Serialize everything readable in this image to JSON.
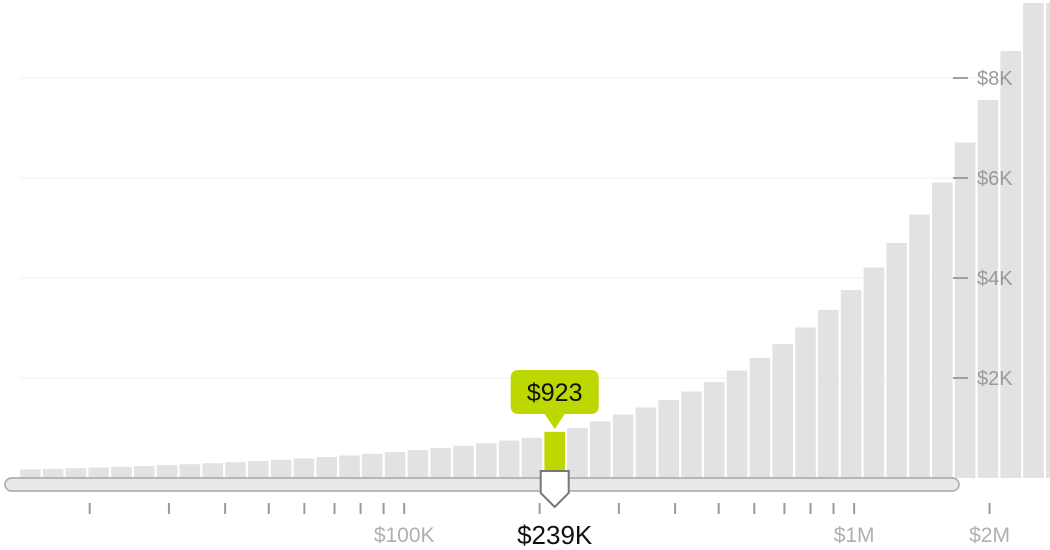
{
  "chart_data": {
    "type": "bar",
    "title": "",
    "xlabel": "",
    "ylabel": "",
    "x_scale": "log",
    "xlim": [
      14000,
      3000000
    ],
    "ylim": [
      0,
      9500
    ],
    "y_ticks": [
      {
        "value": 2000,
        "label": "$2K"
      },
      {
        "value": 4000,
        "label": "$4K"
      },
      {
        "value": 6000,
        "label": "$6K"
      },
      {
        "value": 8000,
        "label": "$8K"
      }
    ],
    "x_labeled_ticks": [
      {
        "value": 100000,
        "label": "$100K"
      },
      {
        "value": 1000000,
        "label": "$1M"
      },
      {
        "value": 2000000,
        "label": "$2M"
      }
    ],
    "x_minor_ticks": [
      20000,
      30000,
      40000,
      50000,
      60000,
      70000,
      80000,
      90000,
      200000,
      300000,
      400000,
      500000,
      600000,
      700000,
      800000,
      900000,
      3000000
    ],
    "values": [
      170,
      182,
      195,
      209,
      224,
      240,
      257,
      276,
      296,
      317,
      340,
      365,
      391,
      420,
      450,
      483,
      519,
      558,
      600,
      646,
      695,
      749,
      806,
      923,
      1000,
      1130,
      1270,
      1410,
      1560,
      1730,
      1920,
      2150,
      2400,
      2680,
      3010,
      3360,
      3760,
      4210,
      4700,
      5270,
      5910,
      6710,
      7560,
      8540,
      9500,
      9500
    ],
    "selected": {
      "index": 23,
      "value_label": "$923",
      "income_label": "$239K"
    },
    "colors": {
      "bar": "#e2e2e2",
      "highlight": "#bcd800",
      "axis_text": "#9a9a9a",
      "track": "#e8e8e8",
      "track_border": "#a6a6a6"
    }
  }
}
